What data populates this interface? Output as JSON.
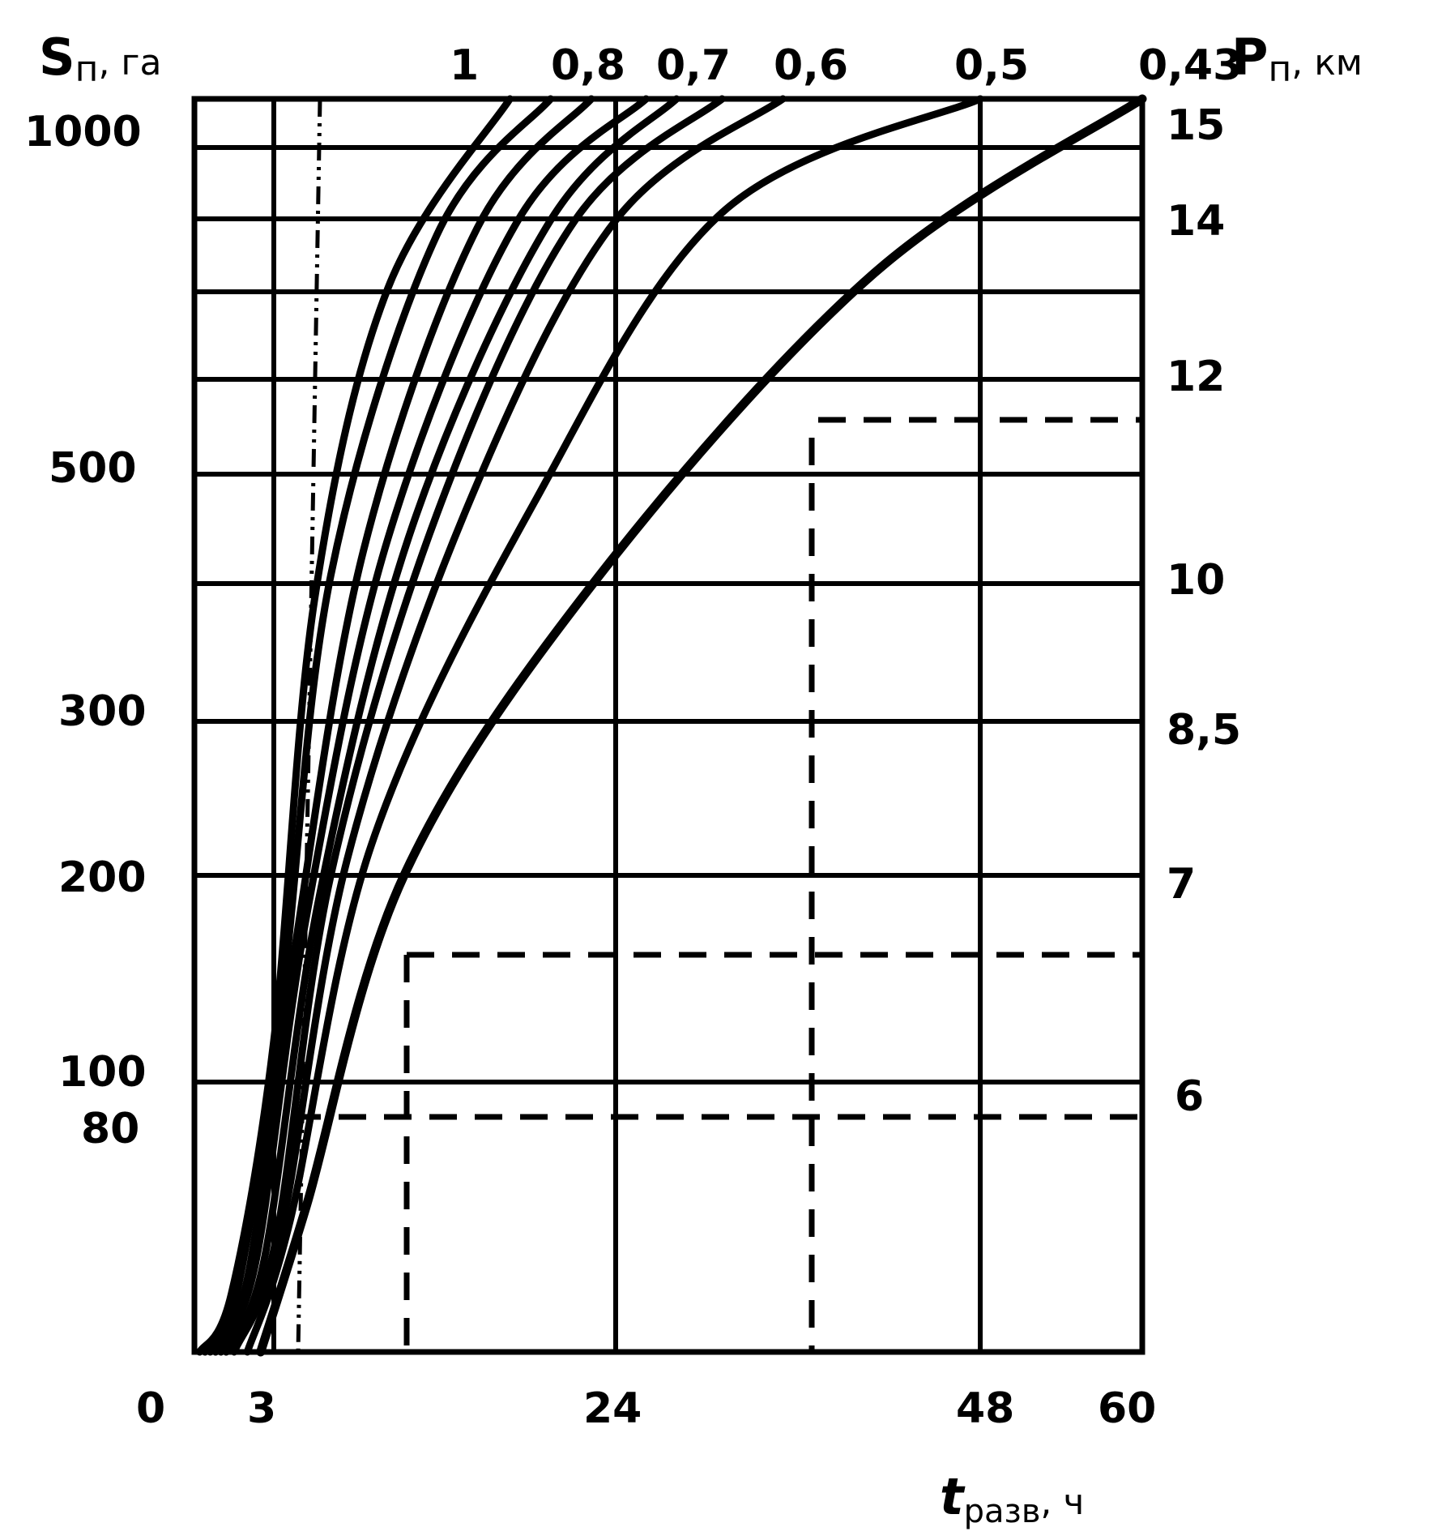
{
  "chart_data": {
    "type": "line",
    "y_title": "S",
    "y_title_sub": "п",
    "y_unit": ", га",
    "right_title": "P",
    "right_title_sub": "п",
    "right_unit": ", км",
    "x_title": "t",
    "x_title_sub": "разв",
    "x_unit": ", ч",
    "x_ticks": [
      {
        "label": "0",
        "value": 0
      },
      {
        "label": "3",
        "value": 3
      },
      {
        "label": "24",
        "value": 24
      },
      {
        "label": "48",
        "value": 48
      },
      {
        "label": "60",
        "value": 60
      }
    ],
    "y_ticks": [
      {
        "label": "1000",
        "value": 1000
      },
      {
        "label": "500",
        "value": 500
      },
      {
        "label": "300",
        "value": 300
      },
      {
        "label": "200",
        "value": 200
      },
      {
        "label": "100",
        "value": 100
      },
      {
        "label": "80",
        "value": 80
      }
    ],
    "right_ticks": [
      "15",
      "14",
      "12",
      "10",
      "8,5",
      "7",
      "6"
    ],
    "top_labels": [
      "1",
      "0,8",
      "0,7",
      "0,6",
      "0,5",
      "0,43"
    ],
    "xlim": [
      0,
      60
    ],
    "grid": true,
    "series": [
      {
        "label": "1",
        "points": [
          [
            0.2,
            0
          ],
          [
            1.4,
            20
          ],
          [
            3,
            120
          ],
          [
            5.5,
            400
          ],
          [
            10,
            750
          ],
          [
            17.5,
            1000
          ]
        ]
      },
      {
        "points": [
          [
            0.4,
            0
          ],
          [
            1.6,
            20
          ],
          [
            3.5,
            140
          ],
          [
            6.5,
            420
          ],
          [
            13,
            820
          ],
          [
            20,
            1000
          ]
        ]
      },
      {
        "label": "0,8",
        "points": [
          [
            0.6,
            0
          ],
          [
            2,
            25
          ],
          [
            4.2,
            160
          ],
          [
            8.5,
            440
          ],
          [
            15.5,
            830
          ],
          [
            22.5,
            1000
          ]
        ]
      },
      {
        "points": [
          [
            0.8,
            0
          ],
          [
            2.3,
            30
          ],
          [
            5,
            180
          ],
          [
            10,
            450
          ],
          [
            18,
            840
          ],
          [
            26,
            1000
          ]
        ]
      },
      {
        "label": "0,7",
        "points": [
          [
            1,
            0
          ],
          [
            2.6,
            30
          ],
          [
            5.8,
            190
          ],
          [
            11.5,
            460
          ],
          [
            20,
            840
          ],
          [
            28,
            1000
          ]
        ]
      },
      {
        "points": [
          [
            1.2,
            0
          ],
          [
            3,
            35
          ],
          [
            6.5,
            200
          ],
          [
            13,
            470
          ],
          [
            21.5,
            840
          ],
          [
            31,
            1000
          ]
        ]
      },
      {
        "label": "0,6",
        "points": [
          [
            1.5,
            0
          ],
          [
            3.4,
            40
          ],
          [
            7.5,
            210
          ],
          [
            15,
            480
          ],
          [
            24,
            840
          ],
          [
            35,
            1000
          ]
        ]
      },
      {
        "label": "0,5",
        "points": [
          [
            2,
            0
          ],
          [
            4,
            45
          ],
          [
            9,
            220
          ],
          [
            19,
            480
          ],
          [
            31,
            850
          ],
          [
            48,
            1000
          ]
        ]
      },
      {
        "label": "0,43",
        "points": [
          [
            2.5,
            0
          ],
          [
            5,
            50
          ],
          [
            11,
            200
          ],
          [
            23,
            420
          ],
          [
            41,
            770
          ],
          [
            60,
            1000
          ]
        ]
      }
    ]
  }
}
